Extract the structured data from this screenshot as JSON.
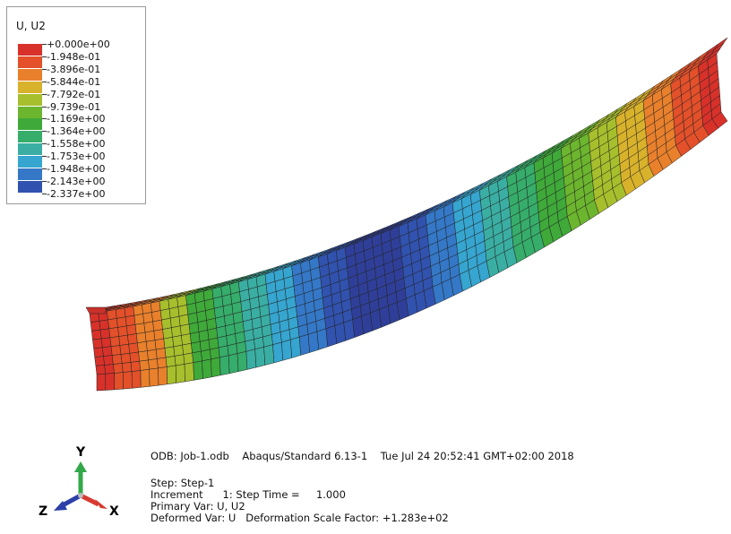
{
  "legend": {
    "title": "U, U2",
    "entries": [
      {
        "label": "+0.000e+00",
        "color": "#d8312a"
      },
      {
        "label": "-1.948e-01",
        "color": "#e3502a"
      },
      {
        "label": "-3.896e-01",
        "color": "#e9802c"
      },
      {
        "label": "-5.844e-01",
        "color": "#d9b22c"
      },
      {
        "label": "-7.792e-01",
        "color": "#a7bf2c"
      },
      {
        "label": "-9.739e-01",
        "color": "#6cb52e"
      },
      {
        "label": "-1.169e+00",
        "color": "#3fa93a"
      },
      {
        "label": "-1.364e+00",
        "color": "#36ad6a"
      },
      {
        "label": "-1.558e+00",
        "color": "#3aaea3"
      },
      {
        "label": "-1.753e+00",
        "color": "#36a5cf"
      },
      {
        "label": "-1.948e+00",
        "color": "#3478c7"
      },
      {
        "label": "-2.143e+00",
        "color": "#3152ae"
      },
      {
        "label": "-2.337e+00",
        "color": "#2f3f99"
      }
    ]
  },
  "triad": {
    "y_label": "Y",
    "z_label": "Z",
    "x_label": "X",
    "y_color": "#33a84a",
    "z_color": "#2c3fa8",
    "x_color": "#d83a30"
  },
  "info": {
    "odb_line": "ODB: Job-1.odb    Abaqus/Standard 6.13-1    Tue Jul 24 20:52:41 GMT+02:00 2018",
    "step_line": "Step: Step-1",
    "increment_line": "Increment      1: Step Time =     1.000",
    "primary_line": "Primary Var: U, U2",
    "deformed_line": "Deformed Var: U   Deformation Scale Factor: +1.283e+02"
  },
  "beam_color_profile": [
    "#d8312a",
    "#e3502a",
    "#e9802c",
    "#a7bf2c",
    "#3fa93a",
    "#36ad6a",
    "#3aaea3",
    "#36a5cf",
    "#3478c7",
    "#3152ae",
    "#2f3f99",
    "#2f3f99",
    "#3152ae",
    "#3478c7",
    "#36a5cf",
    "#3aaea3",
    "#36ad6a",
    "#3fa93a",
    "#6cb52e",
    "#a7bf2c",
    "#d9b22c",
    "#e9802c",
    "#e3502a",
    "#d8312a"
  ]
}
